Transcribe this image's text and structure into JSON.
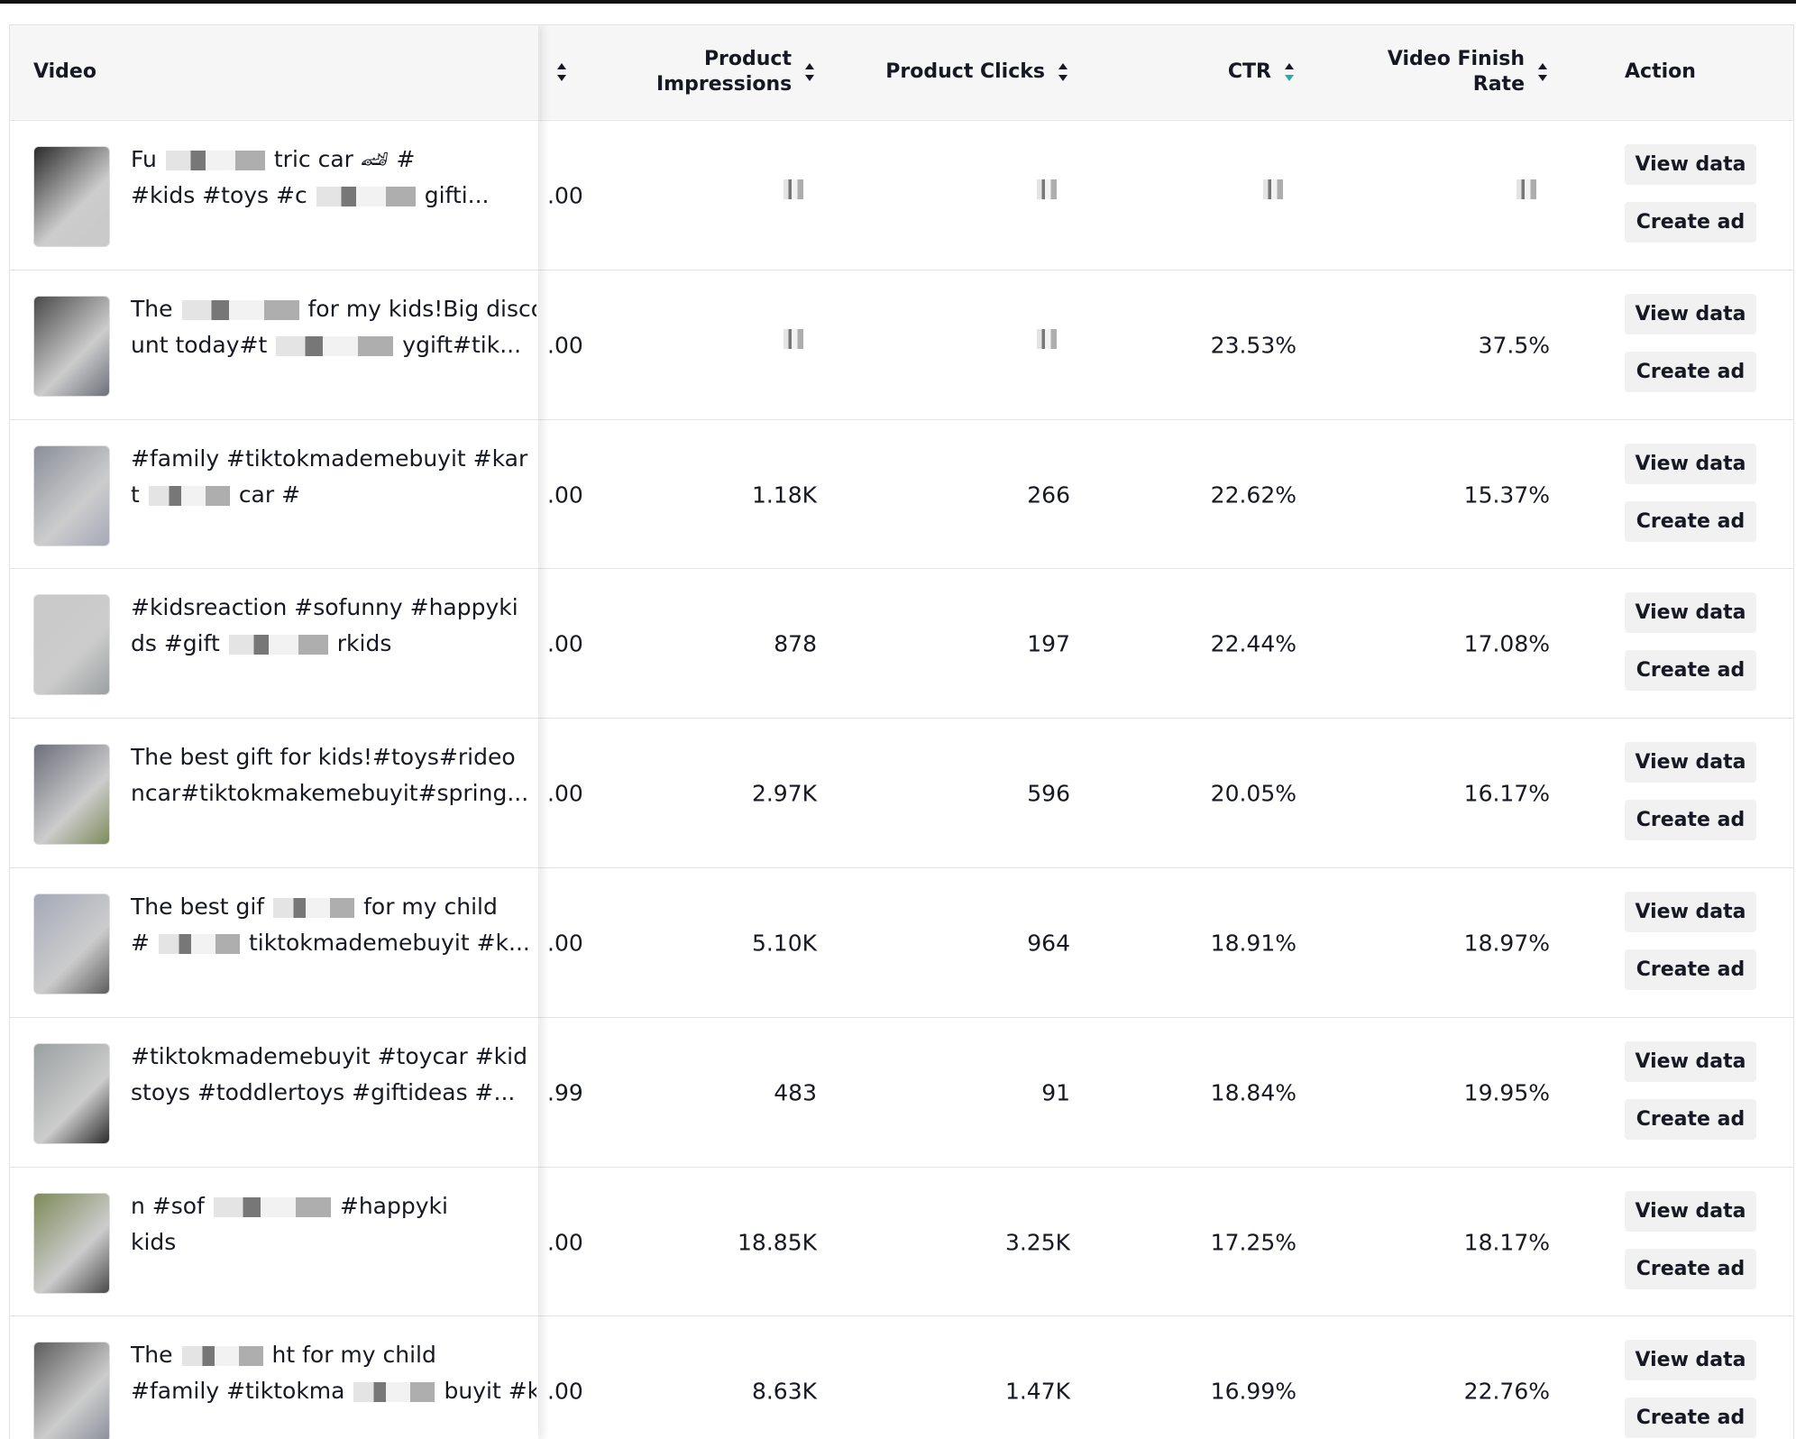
{
  "header": {
    "video": "Video",
    "impressions": "Product Impressions",
    "clicks": "Product Clicks",
    "ctr": "CTR",
    "finish": "Video Finish Rate",
    "action": "Action"
  },
  "buttons": {
    "view": "View data",
    "create": "Create ad"
  },
  "rows": [
    {
      "caption": [
        [
          "Fu",
          "tric car 🏎 #"
        ],
        [
          "#kids #toys #c",
          "gifti..."
        ]
      ],
      "cut": ".00"
    },
    {
      "caption": [
        [
          "The",
          "for my kids!Big disco"
        ],
        [
          "unt today#t",
          "ygift#tik..."
        ]
      ],
      "cut": ".00",
      "ctr": "23.53%",
      "finish": "37.5%"
    },
    {
      "caption": [
        [
          "#family #tiktokmademebuyit #kar"
        ],
        [
          "t",
          "car #"
        ]
      ],
      "cut": ".00",
      "impressions": "1.18K",
      "clicks": "266",
      "ctr": "22.62%",
      "finish": "15.37%"
    },
    {
      "caption": [
        [
          "#kidsreaction #sofunny #happyki"
        ],
        [
          "ds #gift",
          "rkids"
        ]
      ],
      "cut": ".00",
      "impressions": "878",
      "clicks": "197",
      "ctr": "22.44%",
      "finish": "17.08%"
    },
    {
      "caption": [
        [
          "The best gift for kids!#toys#rideo"
        ],
        [
          "ncar#tiktokmakemebuyit#spring..."
        ]
      ],
      "cut": ".00",
      "impressions": "2.97K",
      "clicks": "596",
      "ctr": "20.05%",
      "finish": "16.17%"
    },
    {
      "caption": [
        [
          "The best gif",
          "for my child"
        ],
        [
          "#",
          "tiktokmademebuyit #k..."
        ]
      ],
      "cut": ".00",
      "impressions": "5.10K",
      "clicks": "964",
      "ctr": "18.91%",
      "finish": "18.97%"
    },
    {
      "caption": [
        [
          "#tiktokmademebuyit #toycar #kid"
        ],
        [
          "stoys #toddlertoys #giftideas #..."
        ]
      ],
      "cut": ".99",
      "impressions": "483",
      "clicks": "91",
      "ctr": "18.84%",
      "finish": "19.95%"
    },
    {
      "caption": [
        [
          "n #sof",
          "#happyki"
        ],
        [
          "kids"
        ]
      ],
      "cut": ".00",
      "impressions": "18.85K",
      "clicks": "3.25K",
      "ctr": "17.25%",
      "finish": "18.17%"
    },
    {
      "caption": [
        [
          "The",
          "ht for my child"
        ],
        [
          "#family #tiktokma",
          "buyit #k..."
        ]
      ],
      "cut": ".00",
      "impressions": "8.63K",
      "clicks": "1.47K",
      "ctr": "16.99%",
      "finish": "22.76%"
    }
  ]
}
